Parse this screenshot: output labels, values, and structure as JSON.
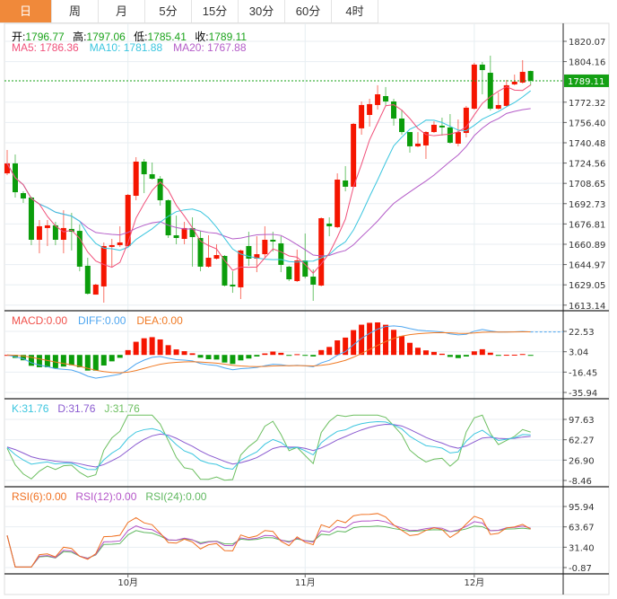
{
  "tabs": [
    {
      "label": "日",
      "active": true
    },
    {
      "label": "周"
    },
    {
      "label": "月"
    },
    {
      "label": "5分"
    },
    {
      "label": "15分"
    },
    {
      "label": "30分"
    },
    {
      "label": "60分"
    },
    {
      "label": "4时"
    }
  ],
  "ohlc_info": {
    "open_label": "开:",
    "open": "1796.77",
    "high_label": "高:",
    "high": "1797.06",
    "low_label": "低:",
    "low": "1785.41",
    "close_label": "收:",
    "close": "1789.11"
  },
  "ma_info": {
    "ma5": "MA5: 1786.36",
    "ma10": "MA10: 1781.88",
    "ma20": "MA20: 1767.88"
  },
  "macd_info": {
    "macd": "MACD:0.00",
    "diff": "DIFF:0.00",
    "dea": "DEA:0.00"
  },
  "kdj_info": {
    "k": "K:31.76",
    "d": "D:31.76",
    "j": "J:31.76"
  },
  "rsi_info": {
    "rsi6": "RSI(6):0.00",
    "rsi12": "RSI(12):0.00",
    "rsi24": "RSI(24):0.00"
  },
  "colors": {
    "up": "#f51500",
    "down": "#0b9d0b",
    "ma5": "#f0507a",
    "ma10": "#3cc6df",
    "ma20": "#b45cc8",
    "diff": "#4ea6f0",
    "dea": "#f07a24",
    "k": "#3cc6df",
    "d": "#8a5ad0",
    "j": "#6cbf60",
    "rsi6": "#f07020",
    "rsi12": "#b455c8",
    "rsi24": "#60b860",
    "accent": "#f0893a",
    "last": "#14a014"
  },
  "chart_data": {
    "type": "candlestick",
    "price_ticks": [
      "1820.07",
      "1804.16",
      "1789.11",
      "1772.32",
      "1756.40",
      "1740.48",
      "1724.56",
      "1708.65",
      "1692.73",
      "1676.81",
      "1660.89",
      "1644.97",
      "1629.05",
      "1613.14"
    ],
    "price_range": [
      1613.14,
      1820.07
    ],
    "last_price": "1789.11",
    "macd_ticks": [
      "22.53",
      "3.04",
      "-16.45",
      "-35.94"
    ],
    "kdj_ticks": [
      "97.63",
      "62.27",
      "26.90",
      "-8.46"
    ],
    "rsi_ticks": [
      "95.94",
      "63.67",
      "31.40",
      "-0.87"
    ],
    "x_labels": [
      {
        "label": "10月",
        "index": 15
      },
      {
        "label": "11月",
        "index": 37
      },
      {
        "label": "12月",
        "index": 58
      }
    ],
    "candles": [
      [
        1716.5,
        1734.8,
        1715.1,
        1724.3
      ],
      [
        1724.3,
        1731.3,
        1697.5,
        1701.7
      ],
      [
        1701.0,
        1702.4,
        1693.3,
        1696.8
      ],
      [
        1697.5,
        1698.2,
        1660.2,
        1664.4
      ],
      [
        1664.4,
        1679.9,
        1653.8,
        1675.0
      ],
      [
        1673.6,
        1679.9,
        1659.5,
        1675.7
      ],
      [
        1675.7,
        1678.5,
        1660.2,
        1664.4
      ],
      [
        1664.4,
        1687.6,
        1653.8,
        1673.6
      ],
      [
        1672.9,
        1685.5,
        1656.0,
        1670.7
      ],
      [
        1671.4,
        1676.4,
        1639.7,
        1643.3
      ],
      [
        1644.0,
        1650.3,
        1621.4,
        1622.1
      ],
      [
        1621.4,
        1629.9,
        1621.4,
        1629.2
      ],
      [
        1627.8,
        1662.3,
        1615.1,
        1659.5
      ],
      [
        1658.8,
        1665.1,
        1642.6,
        1660.2
      ],
      [
        1660.2,
        1675.0,
        1658.8,
        1662.3
      ],
      [
        1659.5,
        1700.3,
        1658.8,
        1699.6
      ],
      [
        1698.9,
        1729.2,
        1695.4,
        1725.7
      ],
      [
        1725.7,
        1727.8,
        1701.0,
        1715.8
      ],
      [
        1715.8,
        1725.0,
        1711.6,
        1712.3
      ],
      [
        1712.3,
        1714.4,
        1691.2,
        1695.4
      ],
      [
        1695.4,
        1696.1,
        1665.8,
        1667.9
      ],
      [
        1667.9,
        1683.4,
        1660.9,
        1665.8
      ],
      [
        1665.1,
        1678.5,
        1660.9,
        1673.6
      ],
      [
        1673.6,
        1682.0,
        1643.3,
        1666.5
      ],
      [
        1665.8,
        1671.4,
        1639.7,
        1643.3
      ],
      [
        1643.3,
        1667.9,
        1642.6,
        1650.3
      ],
      [
        1649.6,
        1660.9,
        1648.9,
        1652.4
      ],
      [
        1651.7,
        1652.4,
        1627.8,
        1628.5
      ],
      [
        1629.2,
        1639.7,
        1622.8,
        1627.8
      ],
      [
        1627.1,
        1656.7,
        1617.9,
        1656.0
      ],
      [
        1659.5,
        1670.7,
        1644.0,
        1649.6
      ],
      [
        1649.6,
        1667.2,
        1639.0,
        1653.1
      ],
      [
        1653.1,
        1675.0,
        1650.3,
        1664.4
      ],
      [
        1664.4,
        1670.7,
        1655.2,
        1663.0
      ],
      [
        1661.6,
        1667.2,
        1639.0,
        1644.7
      ],
      [
        1643.3,
        1644.0,
        1632.0,
        1633.4
      ],
      [
        1632.0,
        1656.7,
        1631.3,
        1648.2
      ],
      [
        1648.2,
        1669.3,
        1634.1,
        1635.5
      ],
      [
        1635.5,
        1641.2,
        1616.5,
        1629.2
      ],
      [
        1628.5,
        1682.0,
        1627.8,
        1681.3
      ],
      [
        1677.1,
        1682.0,
        1667.2,
        1675.0
      ],
      [
        1674.3,
        1716.5,
        1673.6,
        1711.6
      ],
      [
        1710.9,
        1722.2,
        1702.4,
        1706.0
      ],
      [
        1706.0,
        1756.0,
        1705.3,
        1755.3
      ],
      [
        1751.8,
        1772.9,
        1746.8,
        1770.1
      ],
      [
        1762.3,
        1775.0,
        1753.2,
        1770.8
      ],
      [
        1770.1,
        1785.6,
        1766.5,
        1778.5
      ],
      [
        1777.1,
        1784.2,
        1769.4,
        1772.9
      ],
      [
        1772.9,
        1775.0,
        1753.9,
        1759.5
      ],
      [
        1759.5,
        1766.5,
        1746.8,
        1748.9
      ],
      [
        1748.9,
        1748.9,
        1732.7,
        1737.7
      ],
      [
        1737.7,
        1748.9,
        1737.0,
        1739.8
      ],
      [
        1738.4,
        1749.6,
        1727.8,
        1748.9
      ],
      [
        1748.9,
        1757.4,
        1748.2,
        1754.6
      ],
      [
        1753.9,
        1760.2,
        1746.1,
        1752.5
      ],
      [
        1752.5,
        1763.0,
        1739.8,
        1740.5
      ],
      [
        1739.8,
        1758.8,
        1737.7,
        1748.9
      ],
      [
        1748.2,
        1769.4,
        1744.7,
        1768.0
      ],
      [
        1767.2,
        1803.2,
        1766.5,
        1801.8
      ],
      [
        1801.8,
        1803.9,
        1778.5,
        1797.5
      ],
      [
        1795.4,
        1808.8,
        1765.8,
        1767.2
      ],
      [
        1767.2,
        1779.9,
        1766.5,
        1770.1
      ],
      [
        1769.4,
        1789.8,
        1768.7,
        1785.6
      ],
      [
        1786.3,
        1794.0,
        1785.6,
        1788.4
      ],
      [
        1787.7,
        1805.3,
        1787.0,
        1796.1
      ],
      [
        1796.77,
        1797.06,
        1785.41,
        1789.11
      ]
    ]
  }
}
